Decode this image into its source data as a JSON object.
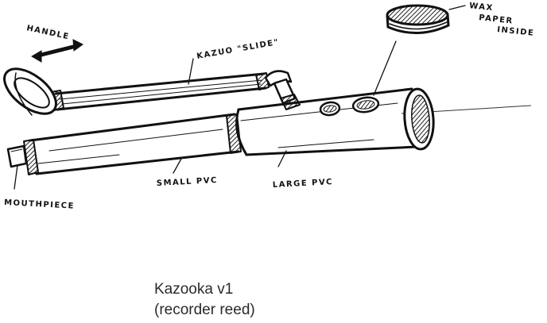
{
  "labels": {
    "handle": "HANDLE",
    "kazoo_slide": "KAZUO \"SLIDE\"",
    "wax_line1": "WAX",
    "wax_line2": "PAPER",
    "wax_line3": "INSIDE",
    "mouthpiece": "MOUTHPIECE",
    "small_pvc": "SMALL PVC",
    "large_pvc": "LARGE PVC"
  },
  "caption": {
    "line1": "Kazooka v1",
    "line2": "(recorder reed)"
  }
}
